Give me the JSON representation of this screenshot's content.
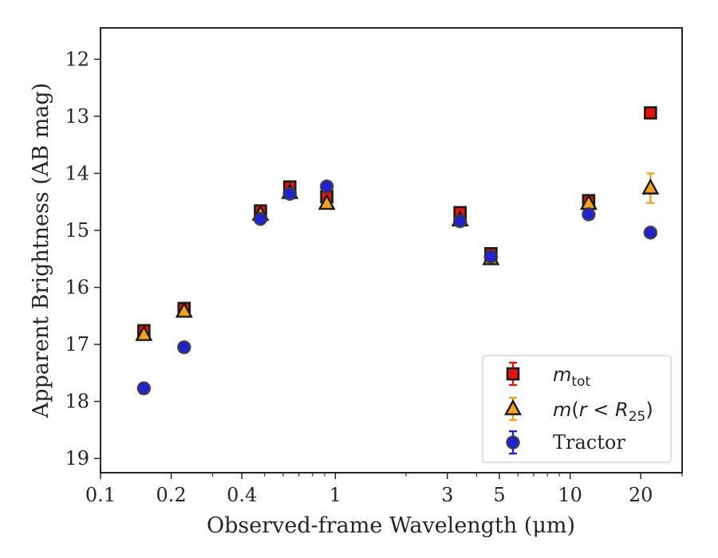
{
  "chart_data": {
    "type": "scatter",
    "xlabel": "Observed-frame Wavelength (μm)",
    "ylabel": "Apparent Brightness (AB mag)",
    "xscale": "log",
    "xlim": [
      0.1,
      30
    ],
    "ylim": [
      19.25,
      11.45
    ],
    "y_inverted": true,
    "xticks": [
      {
        "value": 0.1,
        "label": "0.1"
      },
      {
        "value": 0.2,
        "label": "0.2"
      },
      {
        "value": 0.4,
        "label": "0.4"
      },
      {
        "value": 1,
        "label": "1"
      },
      {
        "value": 3,
        "label": "3"
      },
      {
        "value": 5,
        "label": "5"
      },
      {
        "value": 10,
        "label": "10"
      },
      {
        "value": 20,
        "label": "20"
      }
    ],
    "xminor_ticks": [
      0.3,
      0.5,
      0.6,
      0.7,
      0.8,
      0.9,
      2,
      4,
      6,
      7,
      8,
      9,
      30
    ],
    "yticks": [
      {
        "value": 12,
        "label": "12"
      },
      {
        "value": 13,
        "label": "13"
      },
      {
        "value": 14,
        "label": "14"
      },
      {
        "value": 15,
        "label": "15"
      },
      {
        "value": 16,
        "label": "16"
      },
      {
        "value": 17,
        "label": "17"
      },
      {
        "value": 18,
        "label": "18"
      },
      {
        "value": 19,
        "label": "19"
      }
    ],
    "legend_position": "lower right",
    "series": [
      {
        "name": "m_tot",
        "marker": "square",
        "color": "#e8120c",
        "edge": "#1a1a1a",
        "errcolor": "#e8120c",
        "points": [
          {
            "x": 0.153,
            "y": 16.76,
            "err": 0.06
          },
          {
            "x": 0.227,
            "y": 16.37,
            "err": 0.06
          },
          {
            "x": 0.48,
            "y": 14.66,
            "err": 0.05
          },
          {
            "x": 0.64,
            "y": 14.24,
            "err": 0.05
          },
          {
            "x": 0.92,
            "y": 14.41,
            "err": 0.05
          },
          {
            "x": 3.4,
            "y": 14.69,
            "err": 0.05
          },
          {
            "x": 4.6,
            "y": 15.41,
            "err": 0.05
          },
          {
            "x": 12.0,
            "y": 14.48,
            "err": 0.05
          },
          {
            "x": 22.0,
            "y": 12.94,
            "err": 0.04
          }
        ]
      },
      {
        "name": "m(r < R_25)",
        "marker": "triangle",
        "color": "#f5a21b",
        "edge": "#1a1a1a",
        "errcolor": "#f5a21b",
        "points": [
          {
            "x": 0.153,
            "y": 16.83,
            "err": 0.05
          },
          {
            "x": 0.227,
            "y": 16.42,
            "err": 0.05
          },
          {
            "x": 0.48,
            "y": 14.72,
            "err": 0.04
          },
          {
            "x": 0.64,
            "y": 14.34,
            "err": 0.04
          },
          {
            "x": 0.92,
            "y": 14.53,
            "err": 0.04
          },
          {
            "x": 3.4,
            "y": 14.82,
            "err": 0.04
          },
          {
            "x": 4.6,
            "y": 15.5,
            "err": 0.04
          },
          {
            "x": 12.0,
            "y": 14.53,
            "err": 0.05
          },
          {
            "x": 22.0,
            "y": 14.26,
            "err": 0.26
          }
        ]
      },
      {
        "name": "Tractor",
        "marker": "circle",
        "color": "#1f22d6",
        "edge": "#3a3a3a",
        "errcolor": "#1f22d6",
        "points": [
          {
            "x": 0.153,
            "y": 17.77,
            "err": 0.09
          },
          {
            "x": 0.227,
            "y": 17.05,
            "err": 0.08
          },
          {
            "x": 0.48,
            "y": 14.8,
            "err": 0.05
          },
          {
            "x": 0.64,
            "y": 14.36,
            "err": 0.05
          },
          {
            "x": 0.92,
            "y": 14.23,
            "err": 0.05
          },
          {
            "x": 3.4,
            "y": 14.84,
            "err": 0.05
          },
          {
            "x": 4.6,
            "y": 15.46,
            "err": 0.05
          },
          {
            "x": 12.0,
            "y": 14.72,
            "err": 0.05
          },
          {
            "x": 22.0,
            "y": 15.04,
            "err": 0.05
          }
        ]
      }
    ]
  }
}
